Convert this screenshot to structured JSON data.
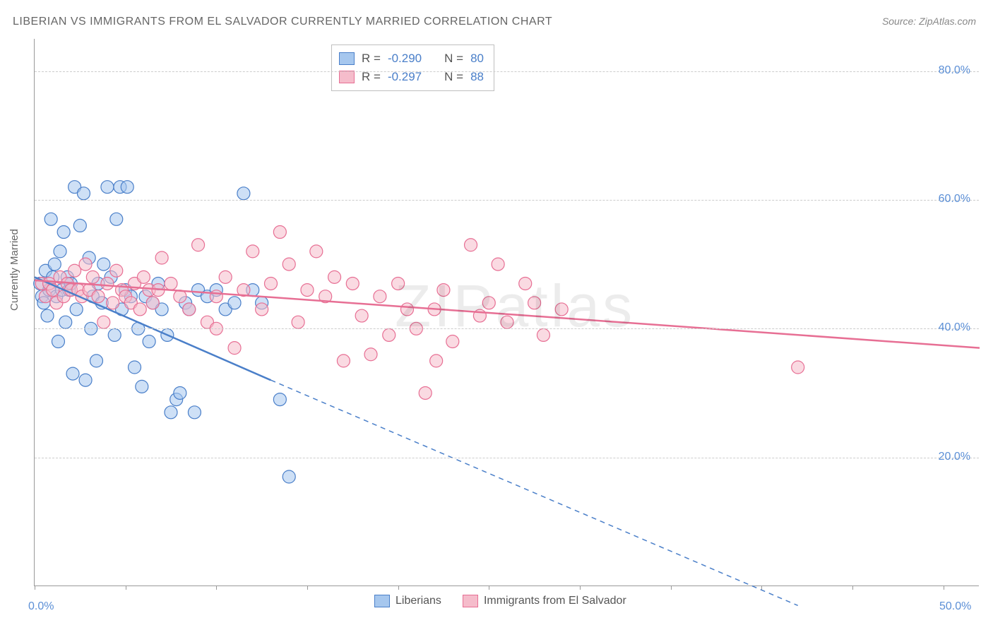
{
  "title": "LIBERIAN VS IMMIGRANTS FROM EL SALVADOR CURRENTLY MARRIED CORRELATION CHART",
  "source": "Source: ZipAtlas.com",
  "watermark": "ZIPatlas",
  "ylabel": "Currently Married",
  "plot": {
    "type": "scatter",
    "xlim": [
      0,
      52
    ],
    "ylim": [
      0,
      85
    ],
    "yticks": [
      20,
      40,
      60,
      80
    ],
    "ytick_labels": [
      "20.0%",
      "40.0%",
      "60.0%",
      "80.0%"
    ],
    "xticks": [
      0,
      5,
      10,
      15,
      20,
      25,
      30,
      35,
      40,
      45,
      50
    ],
    "xlim_labels": {
      "min": "0.0%",
      "max": "50.0%"
    },
    "background_color": "#ffffff",
    "grid_color": "#cccccc",
    "axis_label_color": "#5b8fd6",
    "marker_radius": 9,
    "marker_opacity": 0.55,
    "line_width": 2.5
  },
  "series": [
    {
      "name": "Liberians",
      "color_fill": "#a6c7ee",
      "color_stroke": "#4a7fc9",
      "stats": {
        "R": "-0.290",
        "N": "80"
      },
      "trend": {
        "solid_from": [
          0,
          48
        ],
        "solid_to": [
          13,
          32
        ],
        "dash_to": [
          42,
          -3
        ]
      },
      "points": [
        [
          0.3,
          47
        ],
        [
          0.4,
          45
        ],
        [
          0.5,
          44
        ],
        [
          0.6,
          49
        ],
        [
          0.7,
          42
        ],
        [
          0.8,
          46
        ],
        [
          0.9,
          57
        ],
        [
          1.0,
          48
        ],
        [
          1.1,
          50
        ],
        [
          1.2,
          45
        ],
        [
          1.3,
          38
        ],
        [
          1.4,
          52
        ],
        [
          1.5,
          46
        ],
        [
          1.6,
          55
        ],
        [
          1.7,
          41
        ],
        [
          1.8,
          48
        ],
        [
          1.9,
          46
        ],
        [
          2.0,
          47
        ],
        [
          2.1,
          33
        ],
        [
          2.2,
          62
        ],
        [
          2.3,
          43
        ],
        [
          2.5,
          56
        ],
        [
          2.7,
          61
        ],
        [
          2.8,
          32
        ],
        [
          3.0,
          51
        ],
        [
          3.1,
          40
        ],
        [
          3.2,
          45
        ],
        [
          3.4,
          35
        ],
        [
          3.5,
          47
        ],
        [
          3.7,
          44
        ],
        [
          3.8,
          50
        ],
        [
          4.0,
          62
        ],
        [
          4.2,
          48
        ],
        [
          4.4,
          39
        ],
        [
          4.5,
          57
        ],
        [
          4.7,
          62
        ],
        [
          4.8,
          43
        ],
        [
          5.0,
          46
        ],
        [
          5.1,
          62
        ],
        [
          5.3,
          45
        ],
        [
          5.5,
          34
        ],
        [
          5.7,
          40
        ],
        [
          5.9,
          31
        ],
        [
          6.1,
          45
        ],
        [
          6.3,
          38
        ],
        [
          6.5,
          44
        ],
        [
          6.8,
          47
        ],
        [
          7.0,
          43
        ],
        [
          7.3,
          39
        ],
        [
          7.5,
          27
        ],
        [
          7.8,
          29
        ],
        [
          8.0,
          30
        ],
        [
          8.3,
          44
        ],
        [
          8.5,
          43
        ],
        [
          8.8,
          27
        ],
        [
          9.0,
          46
        ],
        [
          9.5,
          45
        ],
        [
          10.0,
          46
        ],
        [
          10.5,
          43
        ],
        [
          11.0,
          44
        ],
        [
          11.5,
          61
        ],
        [
          12.0,
          46
        ],
        [
          12.5,
          44
        ],
        [
          13.5,
          29
        ],
        [
          14.0,
          17
        ]
      ]
    },
    {
      "name": "Immigrants from El Salvador",
      "color_fill": "#f5bccb",
      "color_stroke": "#e76f94",
      "stats": {
        "R": "-0.297",
        "N": "88"
      },
      "trend": {
        "solid_from": [
          0,
          47.5
        ],
        "solid_to": [
          52,
          37
        ],
        "dash_to": null
      },
      "points": [
        [
          0.4,
          47
        ],
        [
          0.6,
          45
        ],
        [
          0.8,
          47
        ],
        [
          1.0,
          46
        ],
        [
          1.2,
          44
        ],
        [
          1.4,
          48
        ],
        [
          1.6,
          45
        ],
        [
          1.8,
          47
        ],
        [
          2.0,
          46
        ],
        [
          2.2,
          49
        ],
        [
          2.4,
          46
        ],
        [
          2.6,
          45
        ],
        [
          2.8,
          50
        ],
        [
          3.0,
          46
        ],
        [
          3.2,
          48
        ],
        [
          3.5,
          45
        ],
        [
          3.8,
          41
        ],
        [
          4.0,
          47
        ],
        [
          4.3,
          44
        ],
        [
          4.5,
          49
        ],
        [
          4.8,
          46
        ],
        [
          5.0,
          45
        ],
        [
          5.3,
          44
        ],
        [
          5.5,
          47
        ],
        [
          5.8,
          43
        ],
        [
          6.0,
          48
        ],
        [
          6.3,
          46
        ],
        [
          6.5,
          44
        ],
        [
          6.8,
          46
        ],
        [
          7.0,
          51
        ],
        [
          7.5,
          47
        ],
        [
          8.0,
          45
        ],
        [
          8.5,
          43
        ],
        [
          9.0,
          53
        ],
        [
          9.5,
          41
        ],
        [
          10.0,
          45
        ],
        [
          10.0,
          40
        ],
        [
          10.5,
          48
        ],
        [
          11.0,
          37
        ],
        [
          11.5,
          46
        ],
        [
          12.0,
          52
        ],
        [
          12.5,
          43
        ],
        [
          13.0,
          47
        ],
        [
          13.5,
          55
        ],
        [
          14.0,
          50
        ],
        [
          14.5,
          41
        ],
        [
          15.0,
          46
        ],
        [
          15.5,
          52
        ],
        [
          16.0,
          45
        ],
        [
          16.5,
          48
        ],
        [
          17.0,
          35
        ],
        [
          17.5,
          47
        ],
        [
          18.0,
          42
        ],
        [
          18.5,
          36
        ],
        [
          19.0,
          45
        ],
        [
          19.5,
          39
        ],
        [
          20.0,
          47
        ],
        [
          20.5,
          43
        ],
        [
          21.0,
          40
        ],
        [
          21.5,
          30
        ],
        [
          22.0,
          43
        ],
        [
          22.1,
          35
        ],
        [
          22.5,
          46
        ],
        [
          23.0,
          38
        ],
        [
          24.0,
          53
        ],
        [
          24.5,
          42
        ],
        [
          25.0,
          44
        ],
        [
          25.5,
          50
        ],
        [
          26.0,
          41
        ],
        [
          27.0,
          47
        ],
        [
          27.5,
          44
        ],
        [
          28.0,
          39
        ],
        [
          29.0,
          43
        ],
        [
          42.0,
          34
        ]
      ]
    }
  ],
  "stats_legend": {
    "R_label": "R =",
    "N_label": "N ="
  },
  "bottom_legend_series": [
    "Liberians",
    "Immigrants from El Salvador"
  ]
}
